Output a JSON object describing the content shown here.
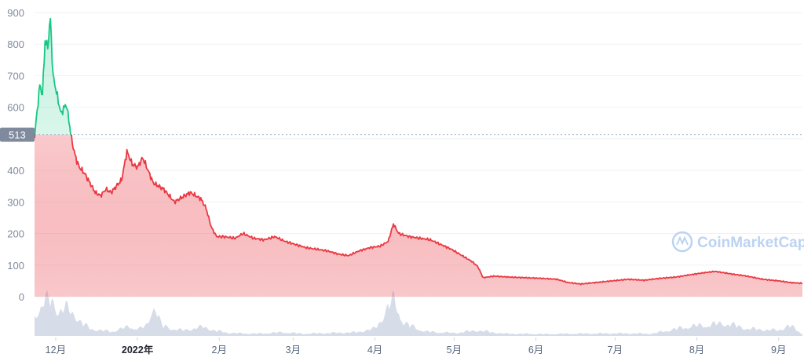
{
  "chart_data": {
    "type": "area",
    "title": "",
    "xlabel": "",
    "ylabel": "",
    "ylim": [
      0,
      900
    ],
    "y_ticks": [
      0,
      100,
      200,
      300,
      400,
      500,
      600,
      700,
      800,
      900
    ],
    "y_tick_labels": [
      "0",
      "100",
      "200",
      "300",
      "400",
      "",
      "600",
      "700",
      "800",
      "900"
    ],
    "x_range": [
      "2021-11-23",
      "2022-09-10"
    ],
    "x_ticks": [
      {
        "date": "2021-12-01",
        "label": "12月",
        "bold": false
      },
      {
        "date": "2022-01-01",
        "label": "2022年",
        "bold": true
      },
      {
        "date": "2022-02-01",
        "label": "2月",
        "bold": false
      },
      {
        "date": "2022-03-01",
        "label": "3月",
        "bold": false
      },
      {
        "date": "2022-04-01",
        "label": "4月",
        "bold": false
      },
      {
        "date": "2022-05-01",
        "label": "5月",
        "bold": false
      },
      {
        "date": "2022-06-01",
        "label": "6月",
        "bold": false
      },
      {
        "date": "2022-07-01",
        "label": "7月",
        "bold": false
      },
      {
        "date": "2022-08-01",
        "label": "8月",
        "bold": false
      },
      {
        "date": "2022-09-01",
        "label": "9月",
        "bold": false
      }
    ],
    "reference_line": {
      "value": 513,
      "label": "513"
    },
    "grid": true,
    "colors": {
      "above": "#16c784",
      "below": "#ea3943",
      "volume": "#cfd6e4",
      "ref_label_bg": "#808a9d",
      "grid": "#eff2f5"
    },
    "watermark": "CoinMarketCap",
    "series": [
      {
        "values": [
          [
            "2021-11-23",
            505
          ],
          [
            "2021-11-24",
            590
          ],
          [
            "2021-11-25",
            670
          ],
          [
            "2021-11-26",
            640
          ],
          [
            "2021-11-27",
            810
          ],
          [
            "2021-11-28",
            790
          ],
          [
            "2021-11-29",
            880
          ],
          [
            "2021-11-30",
            700
          ],
          [
            "2021-12-01",
            660
          ],
          [
            "2021-12-02",
            620
          ],
          [
            "2021-12-03",
            580
          ],
          [
            "2021-12-04",
            595
          ],
          [
            "2021-12-05",
            610
          ],
          [
            "2021-12-06",
            560
          ],
          [
            "2021-12-07",
            500
          ],
          [
            "2021-12-08",
            460
          ],
          [
            "2021-12-09",
            430
          ],
          [
            "2021-12-10",
            410
          ],
          [
            "2021-12-12",
            390
          ],
          [
            "2021-12-14",
            360
          ],
          [
            "2021-12-16",
            330
          ],
          [
            "2021-12-18",
            320
          ],
          [
            "2021-12-20",
            340
          ],
          [
            "2021-12-22",
            330
          ],
          [
            "2021-12-24",
            350
          ],
          [
            "2021-12-26",
            370
          ],
          [
            "2021-12-28",
            460
          ],
          [
            "2021-12-30",
            420
          ],
          [
            "2022-01-01",
            410
          ],
          [
            "2022-01-03",
            440
          ],
          [
            "2022-01-05",
            400
          ],
          [
            "2022-01-07",
            360
          ],
          [
            "2022-01-09",
            350
          ],
          [
            "2022-01-11",
            340
          ],
          [
            "2022-01-13",
            320
          ],
          [
            "2022-01-15",
            300
          ],
          [
            "2022-01-17",
            310
          ],
          [
            "2022-01-19",
            320
          ],
          [
            "2022-01-21",
            330
          ],
          [
            "2022-01-23",
            320
          ],
          [
            "2022-01-25",
            310
          ],
          [
            "2022-01-27",
            280
          ],
          [
            "2022-01-29",
            220
          ],
          [
            "2022-01-31",
            190
          ],
          [
            "2022-02-03",
            190
          ],
          [
            "2022-02-07",
            185
          ],
          [
            "2022-02-10",
            200
          ],
          [
            "2022-02-14",
            185
          ],
          [
            "2022-02-18",
            180
          ],
          [
            "2022-02-22",
            190
          ],
          [
            "2022-02-26",
            175
          ],
          [
            "2022-03-02",
            165
          ],
          [
            "2022-03-06",
            155
          ],
          [
            "2022-03-10",
            150
          ],
          [
            "2022-03-14",
            145
          ],
          [
            "2022-03-18",
            135
          ],
          [
            "2022-03-22",
            130
          ],
          [
            "2022-03-26",
            145
          ],
          [
            "2022-03-30",
            155
          ],
          [
            "2022-04-03",
            160
          ],
          [
            "2022-04-06",
            175
          ],
          [
            "2022-04-08",
            230
          ],
          [
            "2022-04-10",
            200
          ],
          [
            "2022-04-14",
            190
          ],
          [
            "2022-04-18",
            185
          ],
          [
            "2022-04-22",
            180
          ],
          [
            "2022-04-26",
            165
          ],
          [
            "2022-04-30",
            150
          ],
          [
            "2022-05-04",
            130
          ],
          [
            "2022-05-08",
            110
          ],
          [
            "2022-05-10",
            95
          ],
          [
            "2022-05-12",
            60
          ],
          [
            "2022-05-16",
            65
          ],
          [
            "2022-05-22",
            62
          ],
          [
            "2022-05-28",
            60
          ],
          [
            "2022-06-03",
            58
          ],
          [
            "2022-06-09",
            55
          ],
          [
            "2022-06-13",
            45
          ],
          [
            "2022-06-18",
            40
          ],
          [
            "2022-06-24",
            45
          ],
          [
            "2022-06-30",
            50
          ],
          [
            "2022-07-06",
            55
          ],
          [
            "2022-07-12",
            52
          ],
          [
            "2022-07-18",
            58
          ],
          [
            "2022-07-24",
            62
          ],
          [
            "2022-07-30",
            70
          ],
          [
            "2022-08-03",
            75
          ],
          [
            "2022-08-08",
            80
          ],
          [
            "2022-08-14",
            72
          ],
          [
            "2022-08-20",
            65
          ],
          [
            "2022-08-26",
            55
          ],
          [
            "2022-09-01",
            50
          ],
          [
            "2022-09-05",
            45
          ],
          [
            "2022-09-10",
            42
          ]
        ]
      }
    ],
    "volume_relative": [
      [
        "2021-11-23",
        0.55
      ],
      [
        "2021-11-26",
        0.9
      ],
      [
        "2021-11-29",
        1.0
      ],
      [
        "2021-12-02",
        0.7
      ],
      [
        "2021-12-05",
        0.75
      ],
      [
        "2021-12-08",
        0.6
      ],
      [
        "2021-12-11",
        0.35
      ],
      [
        "2021-12-14",
        0.2
      ],
      [
        "2021-12-18",
        0.15
      ],
      [
        "2021-12-22",
        0.12
      ],
      [
        "2021-12-26",
        0.2
      ],
      [
        "2021-12-29",
        0.25
      ],
      [
        "2022-01-02",
        0.2
      ],
      [
        "2022-01-05",
        0.3
      ],
      [
        "2022-01-07",
        0.95
      ],
      [
        "2022-01-10",
        0.3
      ],
      [
        "2022-01-14",
        0.2
      ],
      [
        "2022-01-18",
        0.15
      ],
      [
        "2022-01-22",
        0.2
      ],
      [
        "2022-01-26",
        0.25
      ],
      [
        "2022-01-30",
        0.15
      ],
      [
        "2022-02-05",
        0.08
      ],
      [
        "2022-02-15",
        0.06
      ],
      [
        "2022-02-25",
        0.1
      ],
      [
        "2022-03-05",
        0.06
      ],
      [
        "2022-03-15",
        0.08
      ],
      [
        "2022-03-25",
        0.1
      ],
      [
        "2022-04-01",
        0.2
      ],
      [
        "2022-04-08",
        1.0
      ],
      [
        "2022-04-12",
        0.35
      ],
      [
        "2022-04-20",
        0.12
      ],
      [
        "2022-05-01",
        0.08
      ],
      [
        "2022-05-10",
        0.15
      ],
      [
        "2022-05-20",
        0.06
      ],
      [
        "2022-06-05",
        0.05
      ],
      [
        "2022-06-15",
        0.06
      ],
      [
        "2022-07-01",
        0.07
      ],
      [
        "2022-07-15",
        0.06
      ],
      [
        "2022-07-28",
        0.25
      ],
      [
        "2022-08-05",
        0.3
      ],
      [
        "2022-08-12",
        0.35
      ],
      [
        "2022-08-20",
        0.2
      ],
      [
        "2022-09-01",
        0.15
      ],
      [
        "2022-09-05",
        0.3
      ],
      [
        "2022-09-10",
        0.05
      ]
    ]
  }
}
